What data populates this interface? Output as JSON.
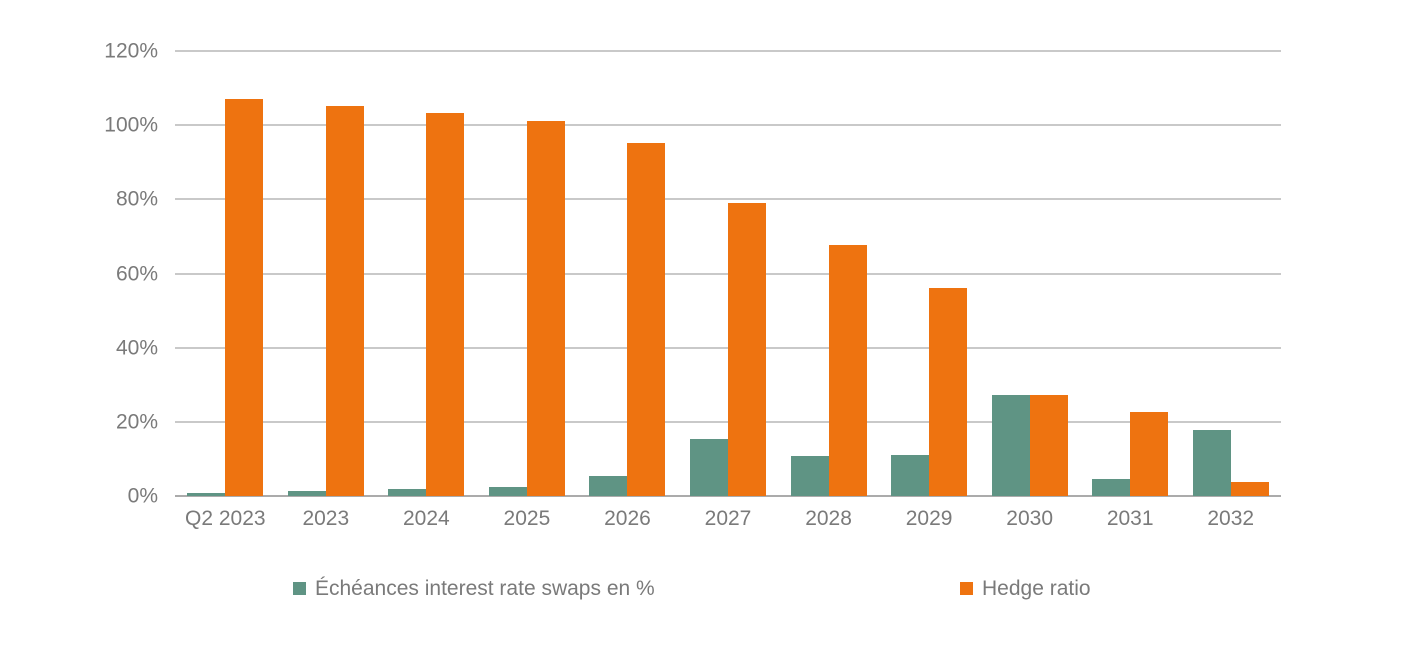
{
  "colors": {
    "background": "#FFFFFF",
    "grid": "#C9C9C9",
    "axis": "#ABABAB",
    "text": "#7A7A7A",
    "green": "#5F9484",
    "orange": "#EE7310"
  },
  "chart_data": {
    "type": "bar",
    "categories": [
      "Q2 2023",
      "2023",
      "2024",
      "2025",
      "2026",
      "2027",
      "2028",
      "2029",
      "2030",
      "2031",
      "2032"
    ],
    "series": [
      {
        "name": "Échéances interest rate swaps en %",
        "color": "#5F9484",
        "values": [
          0.7,
          1.3,
          2,
          2.3,
          5.5,
          15.3,
          10.8,
          11,
          27.2,
          4.6,
          17.8
        ]
      },
      {
        "name": "Hedge ratio",
        "color": "#EE7310",
        "values": [
          107,
          105.3,
          103.4,
          101,
          95.3,
          79,
          67.7,
          56,
          27.2,
          22.6,
          3.7
        ]
      }
    ],
    "title": "",
    "xlabel": "",
    "ylabel": "",
    "ylim": [
      0,
      120
    ],
    "yticks": [
      0,
      20,
      40,
      60,
      80,
      100,
      120
    ],
    "ytick_labels": [
      "0%",
      "20%",
      "40%",
      "60%",
      "80%",
      "100%",
      "120%"
    ],
    "grid": true,
    "legend_position": "bottom"
  }
}
